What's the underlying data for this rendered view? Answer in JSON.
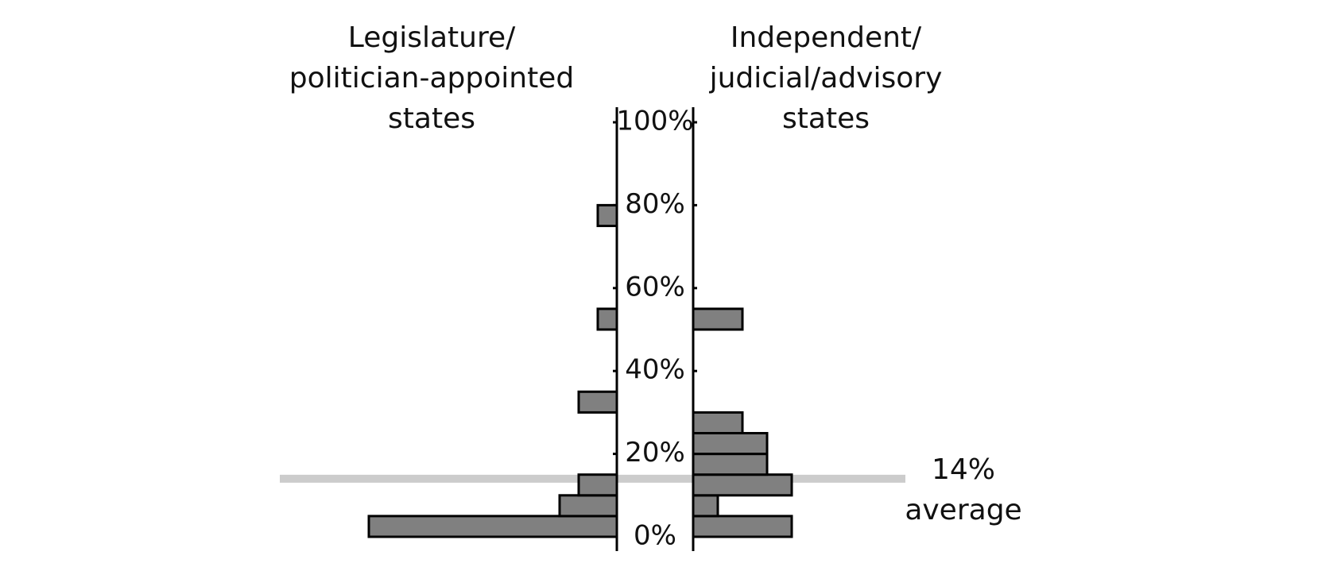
{
  "chart_data": {
    "type": "back_to_back_histogram",
    "bins": [
      0,
      5,
      10,
      15,
      20,
      25,
      30,
      35,
      40,
      45,
      50,
      55,
      60,
      65,
      70,
      75,
      80,
      85,
      90,
      95,
      100
    ],
    "series": [
      {
        "name": [
          "Legislature/",
          "politician-appointed",
          "states"
        ],
        "color": "#808080",
        "side": "left",
        "xlim": [
          0,
          13
        ],
        "values": [
          13,
          3,
          2,
          0,
          0,
          0,
          2,
          0,
          0,
          0,
          1,
          0,
          0,
          0,
          0,
          1,
          0,
          0,
          0,
          0
        ]
      },
      {
        "name": [
          "Independent/",
          "judicial/advisory",
          "states"
        ],
        "color": "#808080",
        "side": "right",
        "xlim": [
          0,
          4
        ],
        "values": [
          4,
          1,
          4,
          3,
          3,
          2,
          0,
          0,
          0,
          0,
          2,
          0,
          0,
          0,
          0,
          0,
          0,
          0,
          0,
          0
        ]
      }
    ],
    "ylim": [
      0,
      100
    ],
    "yticks": [
      {
        "value": 0,
        "label": "0%"
      },
      {
        "value": 20,
        "label": "20%"
      },
      {
        "value": 40,
        "label": "40%"
      },
      {
        "value": 60,
        "label": "60%"
      },
      {
        "value": 80,
        "label": "80%"
      },
      {
        "value": 100,
        "label": "100%"
      }
    ],
    "average": {
      "value": 14,
      "label": "14%",
      "text": "average",
      "color": "#cccccc"
    }
  }
}
